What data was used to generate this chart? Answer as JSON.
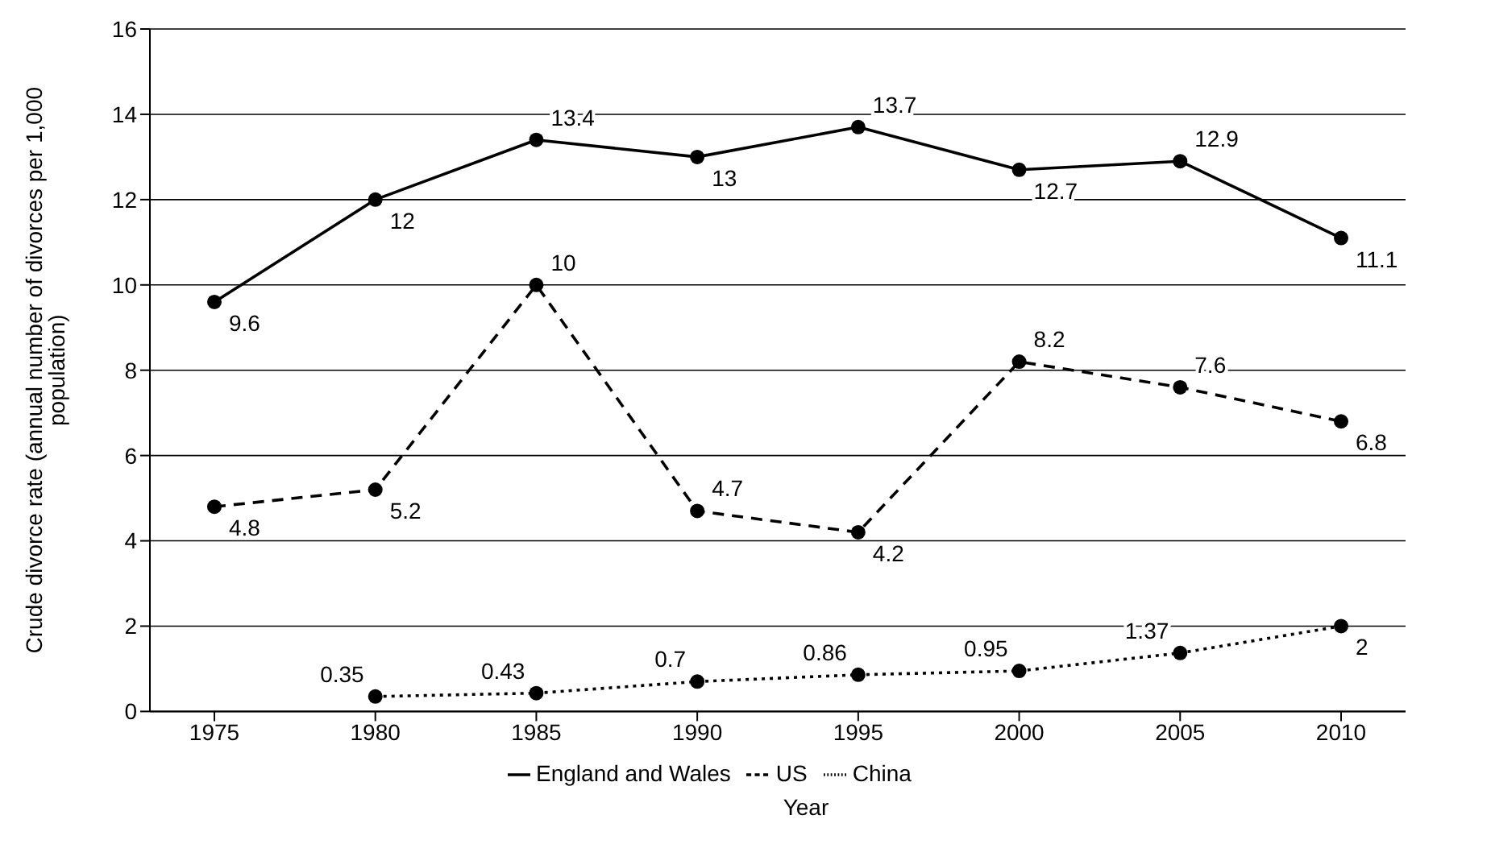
{
  "chart_data": {
    "type": "line",
    "xlabel": "Year",
    "ylabel": "Crude divorce rate (annual number of divorces per 1,000 population)",
    "categories": [
      "1975",
      "1980",
      "1985",
      "1990",
      "1995",
      "2000",
      "2005",
      "2010"
    ],
    "series": [
      {
        "name": "England and Wales",
        "color": "#000000",
        "line_style": "solid",
        "values": [
          9.6,
          12,
          13.4,
          13,
          13.7,
          12.7,
          12.9,
          11.1
        ]
      },
      {
        "name": "US",
        "color": "#000000",
        "line_style": "dashed",
        "values": [
          4.8,
          5.2,
          10,
          4.7,
          4.2,
          8.2,
          7.6,
          6.8
        ]
      },
      {
        "name": "China",
        "color": "#000000",
        "line_style": "dotted",
        "values": [
          null,
          0.35,
          0.43,
          0.7,
          0.86,
          0.95,
          1.37,
          2
        ]
      }
    ],
    "ylim": [
      0,
      16
    ],
    "yticks": [
      0,
      2,
      4,
      6,
      8,
      10,
      12,
      14,
      16
    ],
    "grid": "y",
    "legend": "bottom",
    "marker": "circle",
    "data_labels": true
  }
}
